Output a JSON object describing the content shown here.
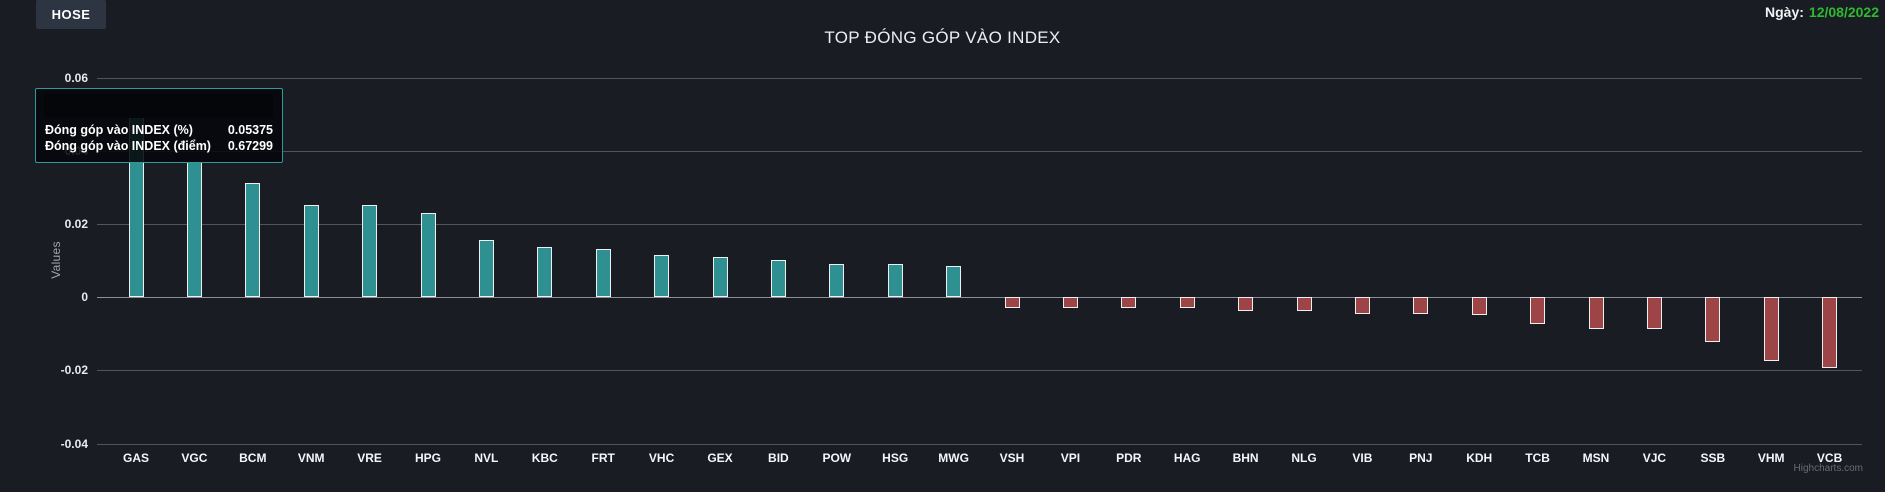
{
  "window": {
    "exchange_button": "HOSE",
    "date_label": "Ngày:",
    "date_value": "12/08/2022"
  },
  "chart": {
    "title": "TOP ĐÓNG GÓP VÀO INDEX",
    "y_axis_title": "Values",
    "credit": "Highcharts.com"
  },
  "tooltip": {
    "rows": [
      {
        "label": "Đóng góp vào INDEX (%)",
        "value": "0.05375"
      },
      {
        "label": "Đóng góp vào INDEX (điểm)",
        "value": "0.67299"
      }
    ]
  },
  "colors": {
    "positive_bar": "#2e9090",
    "negative_bar": "#9c4446",
    "date_text": "#2fb92f",
    "tooltip_border": "#2e9a9a"
  },
  "chart_data": {
    "type": "bar",
    "title": "TOP ĐÓNG GÓP VÀO INDEX",
    "xlabel": "",
    "ylabel": "Values",
    "ylim": [
      -0.04,
      0.06
    ],
    "yticks": [
      0.06,
      0.04,
      0.02,
      0,
      -0.02,
      -0.04
    ],
    "grid": true,
    "legend": false,
    "categories": [
      "GAS",
      "VGC",
      "BCM",
      "VNM",
      "VRE",
      "HPG",
      "NVL",
      "KBC",
      "FRT",
      "VHC",
      "GEX",
      "BID",
      "POW",
      "HSG",
      "MWG",
      "VSH",
      "VPI",
      "PDR",
      "HAG",
      "BHN",
      "NLG",
      "VIB",
      "PNJ",
      "KDH",
      "TCB",
      "MSN",
      "VJC",
      "SSB",
      "VHM",
      "VCB"
    ],
    "series": [
      {
        "name": "Đóng góp vào INDEX (%)",
        "values": [
          0.05375,
          0.0368,
          0.0311,
          0.0252,
          0.0251,
          0.0231,
          0.0156,
          0.0138,
          0.0131,
          0.0115,
          0.011,
          0.0101,
          0.0091,
          0.009,
          0.0086,
          -0.003,
          -0.003,
          -0.003,
          -0.003,
          -0.0038,
          -0.0038,
          -0.0045,
          -0.0045,
          -0.0049,
          -0.0075,
          -0.0088,
          -0.0088,
          -0.0122,
          -0.0175,
          -0.0193
        ]
      }
    ],
    "hovered_point": {
      "category": "GAS",
      "percent": 0.05375,
      "points": 0.67299
    }
  }
}
